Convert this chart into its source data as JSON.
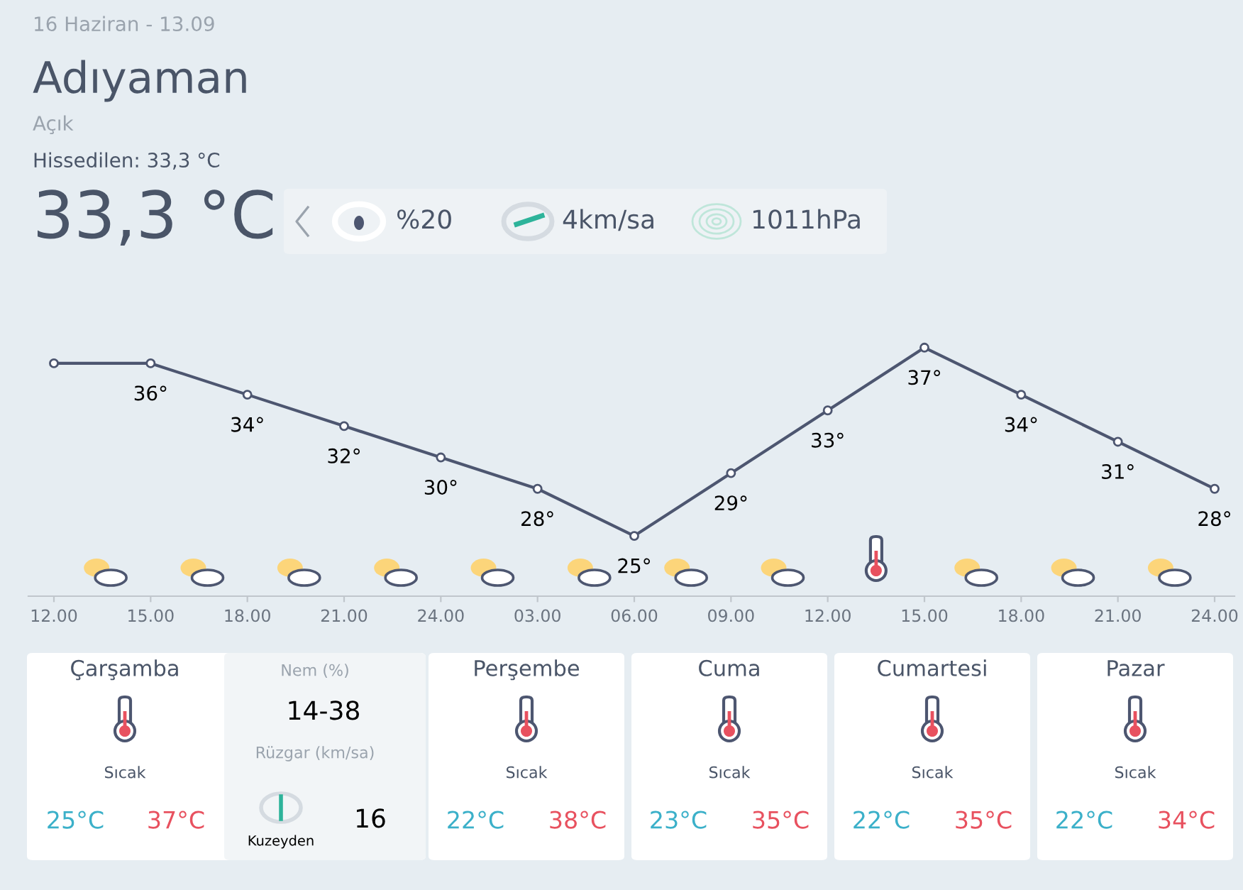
{
  "chart_data": [
    {
      "type": "other",
      "annotations": [
        "16 Haziran - 13.09",
        "Adıyaman",
        "Açık",
        "Hissedilen: 33,3 °C",
        "33,3 °C",
        "%20",
        "4km/sa",
        "1011hPa"
      ]
    },
    {
      "type": "line",
      "categories": [
        "12.00",
        "15.00",
        "18.00",
        "21.00",
        "24.00",
        "03.00",
        "06.00",
        "09.00",
        "12.00",
        "15.00",
        "18.00",
        "21.00",
        "24.00"
      ],
      "values": [
        36,
        36,
        34,
        32,
        30,
        28,
        25,
        29,
        33,
        37,
        34,
        31,
        28
      ],
      "value_labels": [
        null,
        "36°",
        "34°",
        "32°",
        "30°",
        "28°",
        "25°",
        "29°",
        "33°",
        "37°",
        "34°",
        "31°",
        "28°"
      ],
      "color": "#4d5670",
      "tick_labels": "x",
      "grid": false,
      "legend": false,
      "marker": "circle",
      "line_style": "solid"
    },
    {
      "type": "other",
      "annotations": [
        "Çarşamba",
        "Nem (%)",
        "14-38",
        "Rüzgar (km/sa)",
        "Sıcak",
        "25°C",
        "37°C",
        "Kuzeyden",
        "16",
        "Perşembe",
        "Sıcak",
        "22°C",
        "38°C",
        "Cuma",
        "Sıcak",
        "23°C",
        "35°C",
        "Cumartesi",
        "Sıcak",
        "22°C",
        "35°C",
        "Pazar",
        "Sıcak",
        "22°C",
        "34°C"
      ]
    }
  ]
}
